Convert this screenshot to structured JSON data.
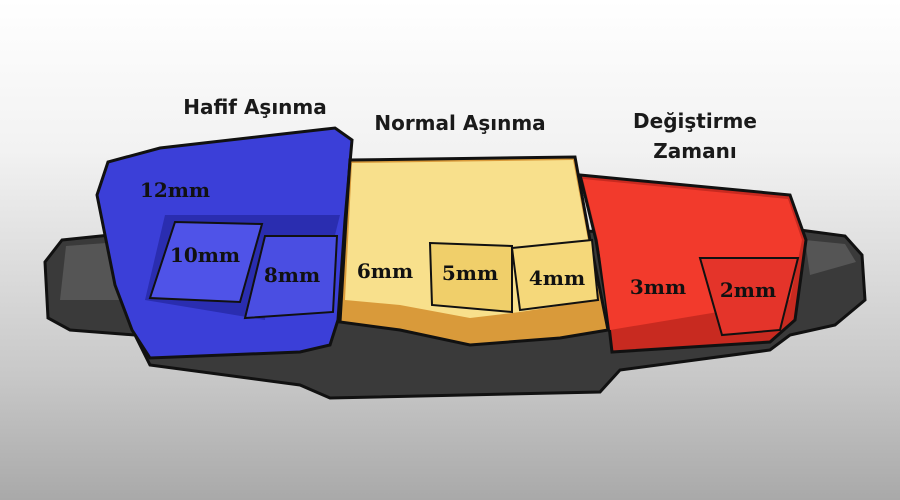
{
  "zones": [
    {
      "title": "Hafif Aşınma",
      "color": "#3b3fd8",
      "measurements": [
        "12mm",
        "10mm",
        "8mm"
      ]
    },
    {
      "title": "Normal Aşınma",
      "color": "#f8e08c",
      "measurements": [
        "6mm",
        "5mm",
        "4mm"
      ]
    },
    {
      "title_lines": [
        "Değiştirme",
        "Zamanı"
      ],
      "color": "#f23a2c",
      "measurements": [
        "3mm",
        "2mm"
      ]
    }
  ],
  "backing_plate_color": "#3a3a3a"
}
